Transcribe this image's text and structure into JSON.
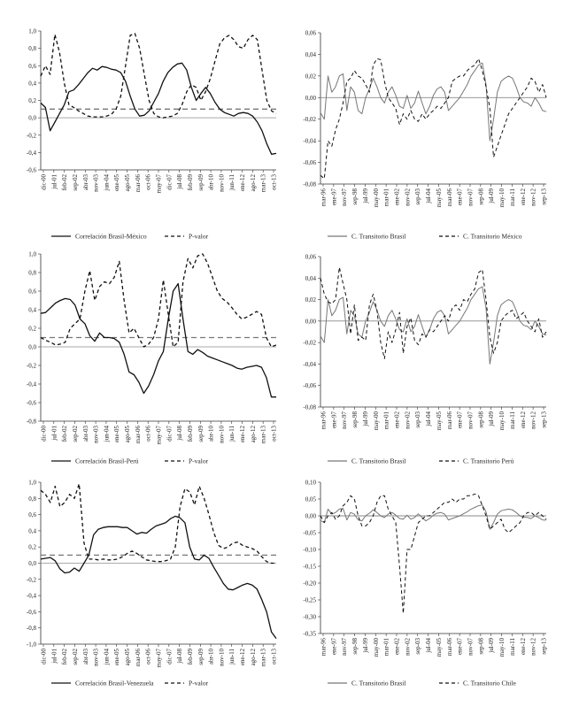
{
  "chart_data": [
    {
      "type": "line",
      "ylim": [
        -0.6,
        1.0
      ],
      "yticks": [
        "1,0",
        "0,8",
        "0,6",
        "0,4",
        "0,2",
        "0,0",
        "-0,2",
        "-0,4",
        "-0,6"
      ],
      "xticks": [
        "dic-00",
        "jul-01",
        "feb-02",
        "sep-02",
        "abr-03",
        "nov-03",
        "jun-04",
        "ene-05",
        "ago-05",
        "mar-06",
        "oct-06",
        "may-07",
        "dic-07",
        "jul-08",
        "feb-09",
        "sep-09",
        "abr-10",
        "nov-10",
        "jun-11",
        "ene-12",
        "ago-12",
        "mar-13",
        "oct-13"
      ],
      "reference_lines": [
        {
          "y": 0.0,
          "color": "#aaaaaa"
        },
        {
          "y": 0.1,
          "color": "#777777",
          "dashed": true
        }
      ],
      "series": [
        {
          "name": "Correlación Brasil-México",
          "style": "solid",
          "values": [
            0.17,
            0.12,
            -0.15,
            -0.05,
            0.05,
            0.15,
            0.3,
            0.32,
            0.38,
            0.45,
            0.52,
            0.57,
            0.55,
            0.59,
            0.58,
            0.56,
            0.55,
            0.52,
            0.42,
            0.25,
            0.1,
            0.02,
            0.03,
            0.08,
            0.18,
            0.28,
            0.42,
            0.52,
            0.58,
            0.62,
            0.63,
            0.55,
            0.35,
            0.2,
            0.28,
            0.35,
            0.28,
            0.18,
            0.1,
            0.06,
            0.04,
            0.02,
            0.05,
            0.06,
            0.05,
            0.02,
            -0.05,
            -0.15,
            -0.3,
            -0.42,
            -0.41
          ]
        },
        {
          "name": "P-valor",
          "style": "dashed",
          "values": [
            0.48,
            0.6,
            0.5,
            0.96,
            0.75,
            0.4,
            0.15,
            0.12,
            0.08,
            0.05,
            0.02,
            0.01,
            0.01,
            0.01,
            0.02,
            0.04,
            0.1,
            0.25,
            0.6,
            0.95,
            0.97,
            0.8,
            0.5,
            0.2,
            0.05,
            0.01,
            0.0,
            0.01,
            0.02,
            0.05,
            0.15,
            0.3,
            0.38,
            0.35,
            0.2,
            0.3,
            0.45,
            0.65,
            0.85,
            0.92,
            0.95,
            0.9,
            0.82,
            0.8,
            0.9,
            0.95,
            0.9,
            0.55,
            0.2,
            0.08,
            0.05
          ]
        }
      ]
    },
    {
      "type": "line",
      "ylim": [
        -0.08,
        0.06
      ],
      "yticks": [
        "0,06",
        "0,04",
        "0,02",
        "0,00",
        "-0,02",
        "-0,04",
        "-0,06",
        "-0,08"
      ],
      "xticks": [
        "mar-96",
        "ene-97",
        "nov-97",
        "sep-98",
        "jul-99",
        "may-00",
        "mar-01",
        "ene-02",
        "nov-02",
        "sep-03",
        "jul-04",
        "may-05",
        "mar-06",
        "ene-07",
        "nov-07",
        "sep-08",
        "jul-09",
        "may-10",
        "mar-11",
        "ene-12",
        "nov-12",
        "sep-13"
      ],
      "reference_lines": [
        {
          "y": 0.0,
          "color": "#888888"
        }
      ],
      "series": [
        {
          "name": "C. Transitorio Brasil",
          "style": "solid",
          "values": [
            -0.014,
            -0.02,
            0.02,
            0.005,
            0.01,
            0.02,
            0.022,
            -0.012,
            0.01,
            0.005,
            -0.012,
            -0.015,
            0.0,
            0.008,
            0.018,
            0.01,
            0.0,
            -0.005,
            0.005,
            0.01,
            0.002,
            -0.008,
            -0.01,
            0.002,
            -0.01,
            -0.005,
            0.006,
            -0.005,
            -0.015,
            -0.008,
            0.002,
            0.008,
            0.01,
            0.005,
            -0.012,
            -0.008,
            -0.004,
            0.0,
            0.006,
            0.012,
            0.02,
            0.025,
            0.03,
            0.032,
            0.012,
            -0.04,
            -0.02,
            0.005,
            0.015,
            0.018,
            0.02,
            0.018,
            0.01,
            0.0,
            -0.004,
            -0.005,
            -0.008,
            0.0,
            -0.005,
            -0.012,
            -0.013
          ]
        },
        {
          "name": "C. Transitorio México",
          "style": "dashed",
          "values": [
            -0.072,
            -0.075,
            -0.04,
            -0.045,
            -0.03,
            -0.02,
            -0.005,
            0.015,
            0.018,
            0.025,
            0.02,
            0.018,
            0.012,
            0.005,
            0.03,
            0.036,
            0.035,
            0.015,
            0.0,
            -0.005,
            -0.01,
            -0.025,
            -0.015,
            -0.02,
            -0.012,
            -0.02,
            -0.022,
            -0.015,
            -0.02,
            -0.015,
            -0.012,
            -0.008,
            -0.01,
            -0.005,
            0.0,
            0.015,
            0.018,
            0.02,
            0.02,
            0.025,
            0.028,
            0.03,
            0.036,
            0.025,
            0.01,
            -0.01,
            -0.055,
            -0.045,
            -0.035,
            -0.025,
            -0.015,
            -0.01,
            -0.005,
            0.0,
            0.005,
            0.01,
            0.018,
            0.015,
            0.005,
            0.012,
            0.0
          ]
        }
      ]
    },
    {
      "type": "line",
      "ylim": [
        -0.8,
        1.0
      ],
      "yticks": [
        "1,0",
        "0,8",
        "0,6",
        "0,4",
        "0,2",
        "0,0",
        "-0,2",
        "-0,4",
        "-0,6",
        "-0,8"
      ],
      "xticks": [
        "dic-00",
        "jul-01",
        "feb-02",
        "sep-02",
        "abr-03",
        "nov-03",
        "jun-04",
        "ene-05",
        "ago-05",
        "mar-06",
        "oct-06",
        "may-07",
        "dic-07",
        "jul-08",
        "feb-09",
        "sep-09",
        "abr-10",
        "nov-10",
        "jun-11",
        "ene-12",
        "ago-12",
        "mar-13",
        "oct-13"
      ],
      "reference_lines": [
        {
          "y": 0.0,
          "color": "#aaaaaa"
        },
        {
          "y": 0.1,
          "color": "#777777",
          "dashed": true
        }
      ],
      "series": [
        {
          "name": "Correlación Brasil-Perú",
          "style": "solid",
          "values": [
            0.36,
            0.37,
            0.42,
            0.47,
            0.5,
            0.52,
            0.51,
            0.45,
            0.3,
            0.25,
            0.12,
            0.06,
            0.15,
            0.1,
            0.1,
            0.09,
            0.05,
            -0.08,
            -0.27,
            -0.3,
            -0.38,
            -0.5,
            -0.42,
            -0.3,
            -0.15,
            -0.05,
            0.3,
            0.6,
            0.68,
            0.3,
            -0.05,
            -0.08,
            -0.03,
            -0.06,
            -0.1,
            -0.12,
            -0.14,
            -0.16,
            -0.18,
            -0.2,
            -0.23,
            -0.24,
            -0.22,
            -0.21,
            -0.2,
            -0.22,
            -0.33,
            -0.54,
            -0.54
          ]
        },
        {
          "name": "P-valor",
          "style": "dashed",
          "values": [
            0.1,
            0.07,
            0.05,
            0.02,
            0.03,
            0.05,
            0.2,
            0.25,
            0.3,
            0.6,
            0.82,
            0.5,
            0.65,
            0.7,
            0.68,
            0.75,
            0.92,
            0.5,
            0.15,
            0.2,
            0.1,
            0.0,
            0.03,
            0.1,
            0.3,
            0.72,
            0.35,
            0.0,
            0.05,
            0.7,
            0.95,
            0.85,
            0.98,
            1.0,
            0.9,
            0.75,
            0.6,
            0.52,
            0.48,
            0.42,
            0.35,
            0.3,
            0.32,
            0.35,
            0.38,
            0.35,
            0.1,
            0.0,
            0.02
          ]
        }
      ]
    },
    {
      "type": "line",
      "ylim": [
        -0.08,
        0.06
      ],
      "yticks": [
        "0,06",
        "0,04",
        "0,02",
        "0,00",
        "-0,02",
        "-0,04",
        "-0,06",
        "-0,08"
      ],
      "xticks": [
        "mar-96",
        "ene-97",
        "nov-97",
        "sep-98",
        "jul-99",
        "may-00",
        "mar-01",
        "ene-02",
        "nov-02",
        "sep-03",
        "jul-04",
        "may-05",
        "mar-06",
        "ene-07",
        "nov-07",
        "sep-08",
        "jul-09",
        "may-10",
        "mar-11",
        "ene-12",
        "nov-12",
        "sep-13"
      ],
      "reference_lines": [
        {
          "y": 0.0,
          "color": "#888888"
        }
      ],
      "series": [
        {
          "name": "C. Transitorio Brasil",
          "style": "solid",
          "values": [
            -0.014,
            -0.02,
            0.02,
            0.005,
            0.01,
            0.02,
            0.022,
            -0.012,
            0.01,
            0.005,
            -0.012,
            -0.015,
            0.0,
            0.008,
            0.018,
            0.01,
            0.0,
            -0.005,
            0.005,
            0.01,
            0.002,
            -0.008,
            -0.01,
            0.002,
            -0.01,
            -0.005,
            0.006,
            -0.005,
            -0.015,
            -0.008,
            0.002,
            0.008,
            0.01,
            0.005,
            -0.012,
            -0.008,
            -0.004,
            0.0,
            0.006,
            0.012,
            0.02,
            0.025,
            0.03,
            0.032,
            0.012,
            -0.04,
            -0.02,
            0.005,
            0.015,
            0.018,
            0.02,
            0.018,
            0.01,
            0.0,
            -0.004,
            -0.005,
            -0.008,
            0.0,
            -0.005,
            -0.012,
            -0.013
          ]
        },
        {
          "name": "C. Transitorio Perú",
          "style": "dashed",
          "values": [
            0.04,
            0.025,
            0.018,
            0.016,
            0.02,
            0.05,
            0.035,
            0.02,
            -0.012,
            0.015,
            -0.018,
            -0.015,
            -0.018,
            0.015,
            0.025,
            0.01,
            -0.02,
            -0.035,
            -0.01,
            -0.02,
            -0.008,
            0.008,
            -0.03,
            -0.005,
            0.003,
            -0.018,
            -0.022,
            -0.012,
            -0.015,
            -0.008,
            -0.01,
            -0.005,
            0.0,
            0.005,
            0.0,
            0.012,
            0.015,
            0.01,
            0.02,
            0.018,
            0.025,
            0.03,
            0.045,
            0.048,
            0.02,
            -0.015,
            -0.03,
            -0.02,
            0.0,
            0.005,
            0.008,
            0.01,
            0.002,
            0.005,
            0.008,
            0.0,
            -0.005,
            -0.01,
            0.002,
            -0.015,
            -0.01
          ]
        }
      ]
    },
    {
      "type": "line",
      "ylim": [
        -1.0,
        1.0
      ],
      "yticks": [
        "1,0",
        "0,8",
        "0,6",
        "0,4",
        "0,2",
        "0,0",
        "-0,2",
        "-0,4",
        "-0,6",
        "-0,8",
        "-1,0"
      ],
      "xticks": [
        "dic-00",
        "jul-01",
        "feb-02",
        "sep-02",
        "abr-03",
        "nov-03",
        "jun-04",
        "ene-05",
        "ago-05",
        "mar-06",
        "oct-06",
        "may-07",
        "dic-07",
        "jul-08",
        "feb-09",
        "sep-09",
        "abr-10",
        "nov-10",
        "jun-11",
        "ene-12",
        "ago-12",
        "mar-13",
        "oct-13"
      ],
      "reference_lines": [
        {
          "y": 0.0,
          "color": "#aaaaaa"
        },
        {
          "y": 0.1,
          "color": "#777777",
          "dashed": true
        }
      ],
      "series": [
        {
          "name": "Correlación Brasil-Venezuela",
          "style": "solid",
          "values": [
            0.05,
            0.06,
            0.07,
            0.03,
            -0.07,
            -0.12,
            -0.11,
            -0.06,
            -0.1,
            0.0,
            0.1,
            0.35,
            0.42,
            0.44,
            0.45,
            0.45,
            0.45,
            0.44,
            0.44,
            0.4,
            0.36,
            0.38,
            0.37,
            0.42,
            0.46,
            0.48,
            0.5,
            0.55,
            0.58,
            0.56,
            0.5,
            0.2,
            0.05,
            0.04,
            0.1,
            0.06,
            -0.05,
            -0.15,
            -0.25,
            -0.32,
            -0.33,
            -0.3,
            -0.27,
            -0.25,
            -0.27,
            -0.32,
            -0.45,
            -0.6,
            -0.85,
            -0.93
          ]
        },
        {
          "name": "P-valor",
          "style": "dashed",
          "values": [
            0.9,
            0.85,
            0.75,
            0.95,
            0.7,
            0.75,
            0.85,
            0.8,
            0.98,
            0.25,
            0.05,
            0.05,
            0.04,
            0.05,
            0.04,
            0.04,
            0.05,
            0.08,
            0.12,
            0.15,
            0.12,
            0.08,
            0.04,
            0.03,
            0.02,
            0.02,
            0.03,
            0.05,
            0.2,
            0.7,
            0.92,
            0.88,
            0.72,
            0.95,
            0.8,
            0.6,
            0.38,
            0.22,
            0.18,
            0.2,
            0.25,
            0.26,
            0.22,
            0.2,
            0.18,
            0.15,
            0.08,
            0.02,
            0.0,
            0.0
          ]
        }
      ]
    },
    {
      "type": "line",
      "ylim": [
        -0.35,
        0.1
      ],
      "yticks": [
        "0,10",
        "0,05",
        "0,00",
        "-0,05",
        "-0,10",
        "-0,15",
        "-0,20",
        "-0,25",
        "-0,30",
        "-0,35"
      ],
      "xticks": [
        "mar-96",
        "ene-97",
        "nov-97",
        "sep-98",
        "jul-99",
        "may-00",
        "mar-01",
        "ene-02",
        "nov-02",
        "sep-03",
        "jul-04",
        "may-05",
        "mar-06",
        "ene-07",
        "nov-07",
        "sep-08",
        "jul-09",
        "may-10",
        "mar-11",
        "ene-12",
        "nov-12",
        "sep-13"
      ],
      "reference_lines": [
        {
          "y": 0.0,
          "color": "#888888"
        }
      ],
      "series": [
        {
          "name": "C. Transitorio Brasil",
          "style": "solid",
          "values": [
            -0.014,
            -0.02,
            0.02,
            0.005,
            0.01,
            0.02,
            0.022,
            -0.012,
            0.01,
            0.005,
            -0.012,
            -0.015,
            0.0,
            0.008,
            0.018,
            0.01,
            0.0,
            -0.005,
            0.005,
            0.01,
            0.002,
            -0.008,
            -0.01,
            0.002,
            -0.01,
            -0.005,
            0.006,
            -0.005,
            -0.015,
            -0.008,
            0.002,
            0.008,
            0.01,
            0.005,
            -0.012,
            -0.008,
            -0.004,
            0.0,
            0.006,
            0.012,
            0.02,
            0.025,
            0.03,
            0.032,
            0.012,
            -0.04,
            -0.02,
            0.005,
            0.015,
            0.018,
            0.02,
            0.018,
            0.01,
            0.0,
            -0.004,
            -0.005,
            -0.008,
            0.0,
            -0.005,
            -0.012,
            -0.013
          ]
        },
        {
          "name": "C. Transitorio Chile",
          "style": "dashed",
          "values": [
            0.0,
            -0.02,
            0.0,
            0.01,
            -0.01,
            0.0,
            0.03,
            0.04,
            0.06,
            0.05,
            0.0,
            -0.03,
            -0.03,
            -0.02,
            0.0,
            0.04,
            0.06,
            0.06,
            0.02,
            0.0,
            -0.02,
            -0.15,
            -0.29,
            -0.1,
            -0.1,
            -0.06,
            -0.02,
            -0.01,
            0.0,
            0.0,
            0.01,
            0.02,
            0.03,
            0.04,
            0.04,
            0.05,
            0.04,
            0.05,
            0.05,
            0.06,
            0.06,
            0.065,
            0.06,
            0.03,
            0.0,
            -0.04,
            -0.03,
            -0.02,
            -0.01,
            -0.04,
            -0.05,
            -0.04,
            -0.03,
            -0.02,
            0.0,
            0.01,
            0.01,
            0.0,
            0.01,
            0.0,
            -0.01
          ]
        }
      ]
    }
  ]
}
